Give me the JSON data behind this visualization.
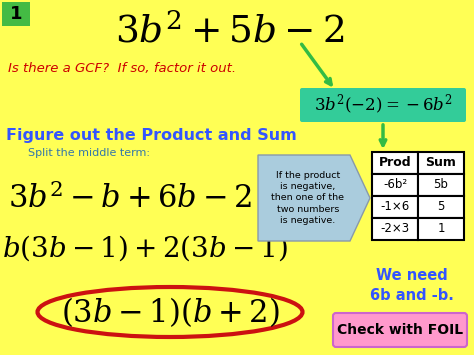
{
  "bg_color": "#FFFF55",
  "title_number": "1",
  "main_formula": "$3b^2+5b-2$",
  "gcf_text": "Is there a GCF?  If so, factor it out.",
  "gcf_text_color": "#CC0000",
  "product_box_text": "$3b^2(-2)=-6b^2$",
  "product_box_bg": "#33CC99",
  "figure_text": "Figure out the Product and Sum",
  "figure_text_color": "#3355FF",
  "split_text": "Split the middle term:",
  "split_text_color": "#3377AA",
  "step1_formula": "$3b^2-b+6b-2$",
  "step2_formula": "$b(3b-1)+2(3b-1)$",
  "final_formula": "$(3b-1)(b+2)$",
  "hint_box_text": "If the product\nis negative,\nthen one of the\ntwo numbers\nis negative.",
  "hint_box_bg": "#AACCDD",
  "table_header": [
    "Prod",
    "Sum"
  ],
  "table_row0": [
    "-6b²",
    "5b"
  ],
  "table_row1": [
    "-1×6",
    "5"
  ],
  "table_row2": [
    "-2×3",
    "1"
  ],
  "we_need_text": "We need\n6b and -b.",
  "we_need_color": "#3355FF",
  "foil_text": "Check with FOIL",
  "foil_box_bg": "#FF99CC",
  "foil_box_edge": "#CC66CC",
  "arrow_color": "#33BB44",
  "ellipse_color": "#CC1111",
  "title_box_bg": "#44BB44"
}
